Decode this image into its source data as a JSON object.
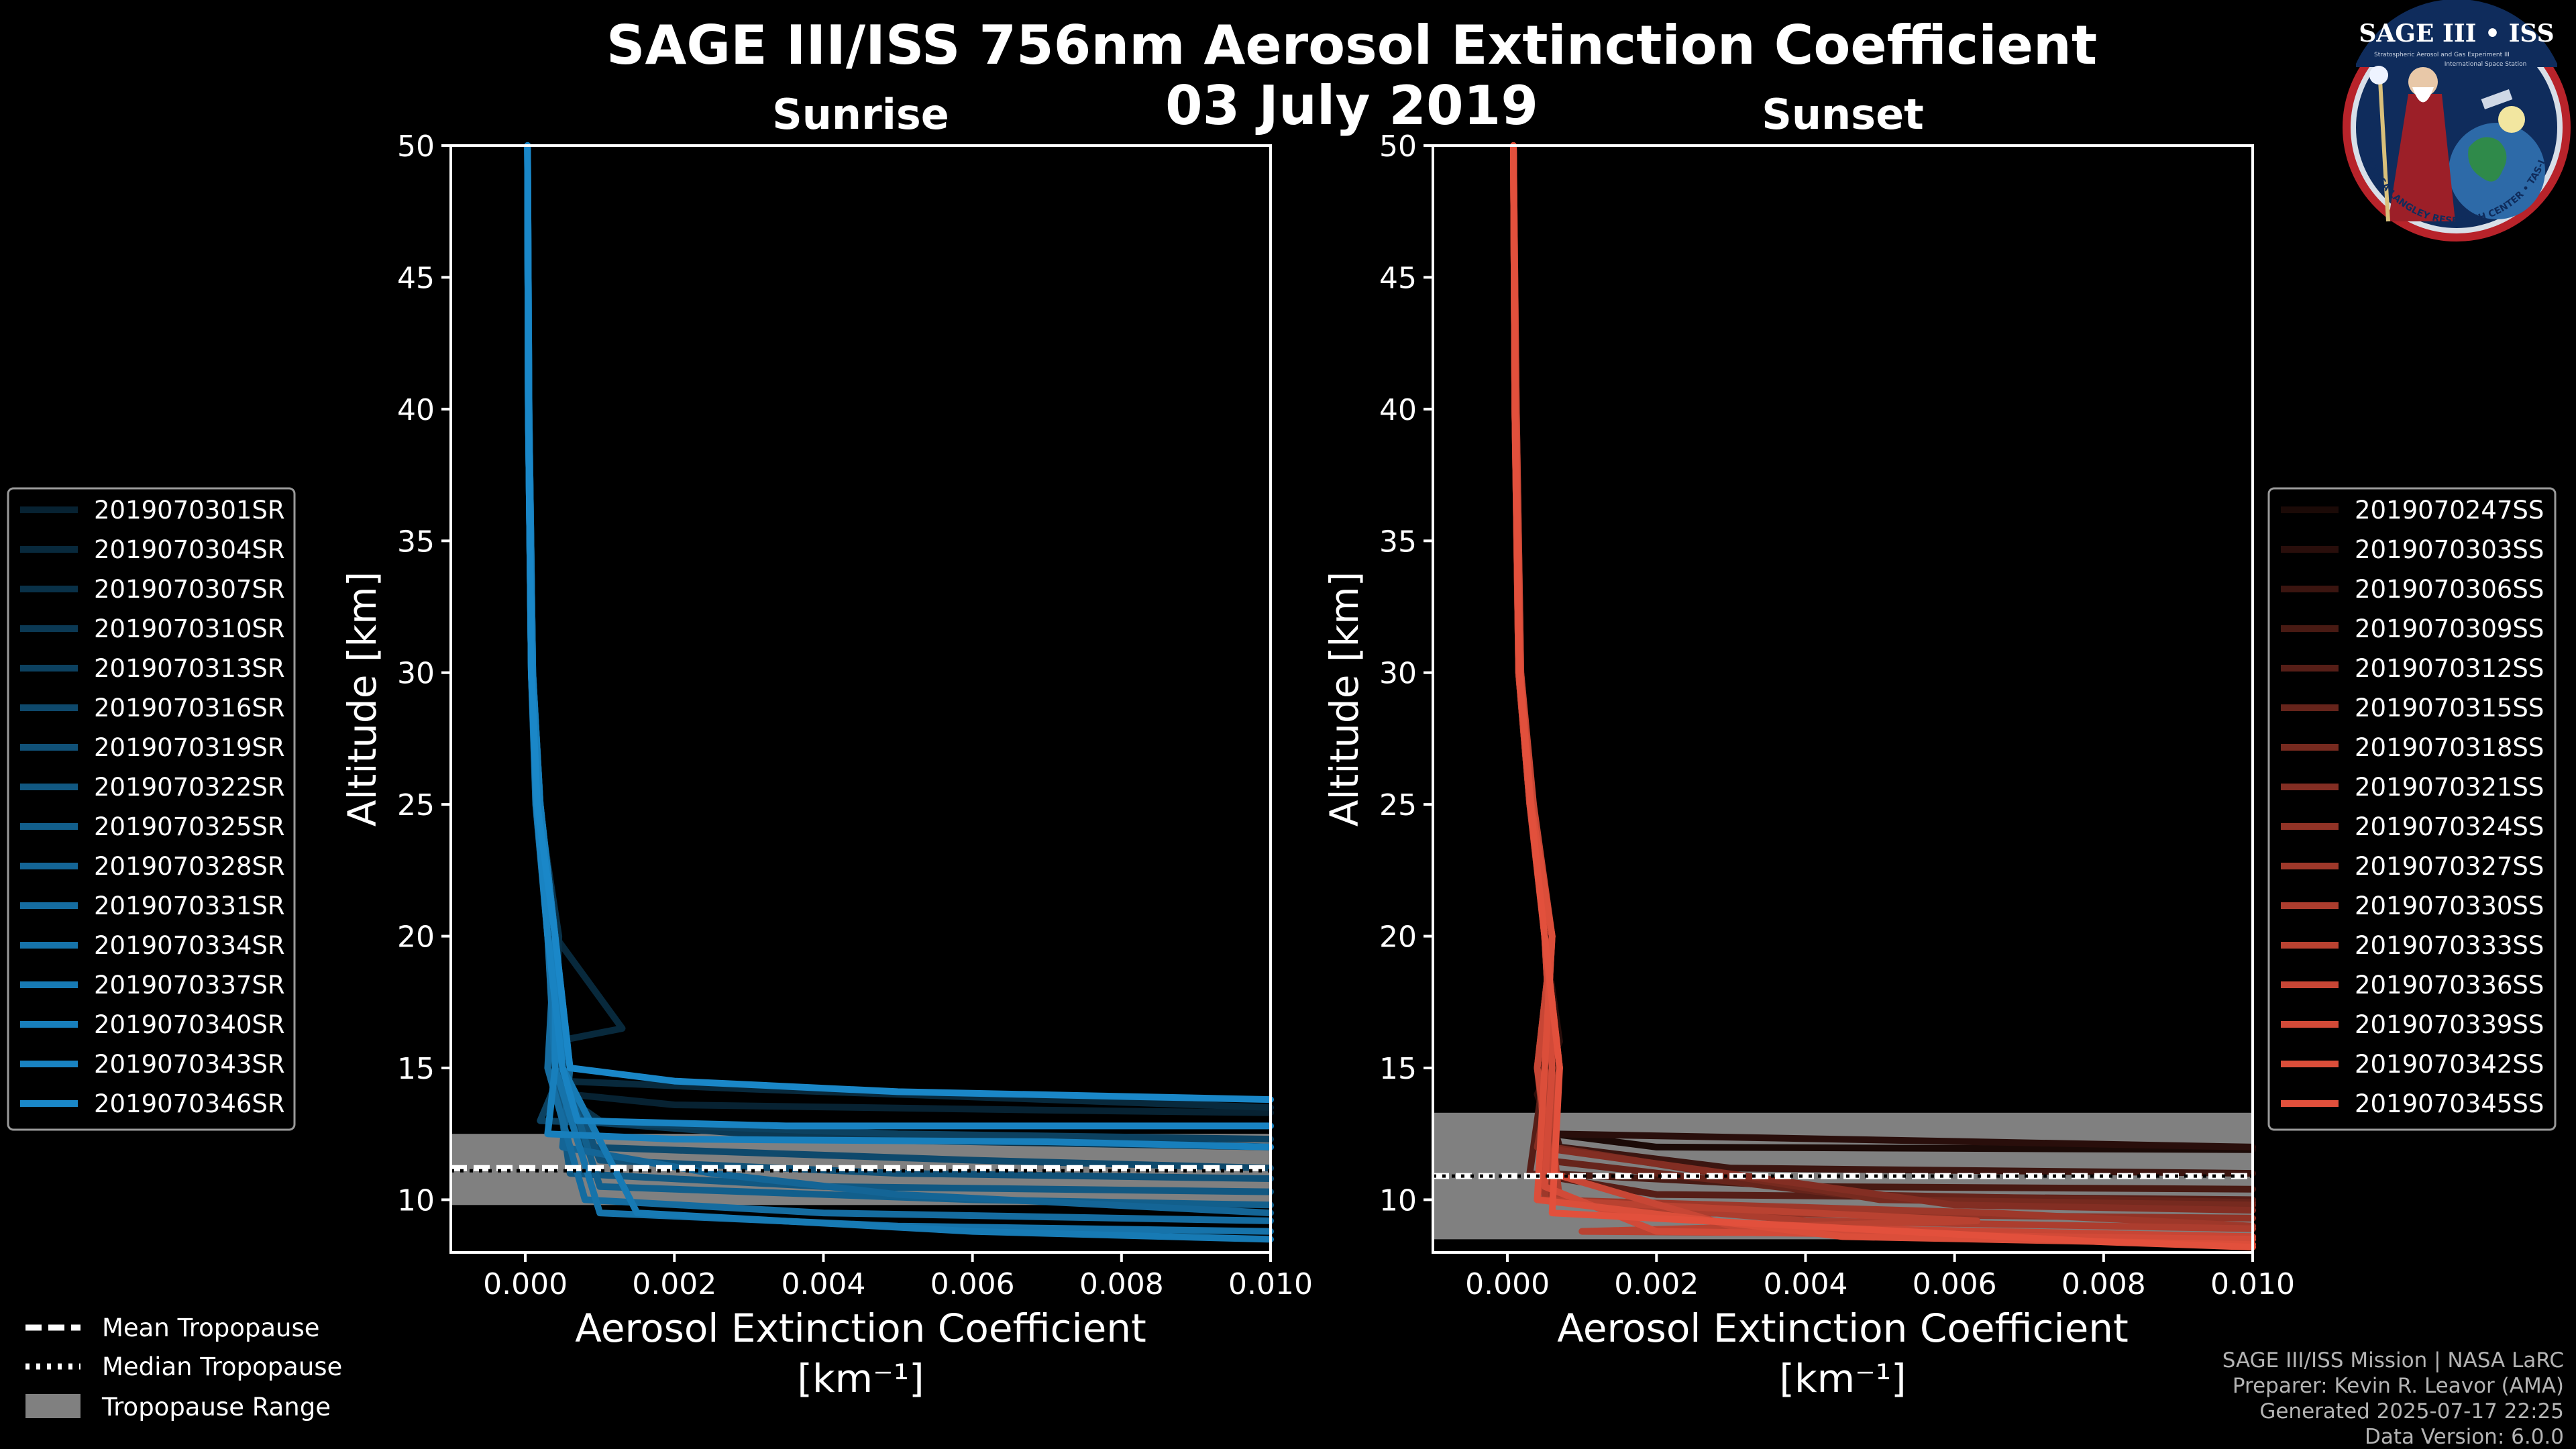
{
  "header": {
    "title_line1": "SAGE III/ISS 756nm Aerosol Extinction Coefficient",
    "title_line2": "03 July 2019"
  },
  "logo": {
    "text": "SAGE III • ISS",
    "ring_text": "BALL • NASA LANGLEY RESEARCH CENTER • TAS-I • ESA",
    "subtitle": "Stratospheric Aerosol and Gas Experiment III",
    "subtitle2": "International Space Station"
  },
  "footer": {
    "line1": "SAGE III/ISS Mission | NASA LaRC",
    "line2": "Preparer: Kevin R. Leavor (AMA)",
    "line3": "Generated 2025-07-17 22:25",
    "line4": "Data Version: 6.0.0"
  },
  "tropopause_legend": {
    "mean": "Mean Tropopause",
    "median": "Median Tropopause",
    "range": "Tropopause Range"
  },
  "colors": {
    "sunrise": "#1a87c8",
    "sunset": "#e2503c",
    "tropo_band": "#808080"
  },
  "chart_data": [
    {
      "type": "line",
      "title": "Sunrise",
      "xlabel": "Aerosol Extinction Coefficient",
      "xlabel_unit": "[km⁻¹]",
      "ylabel": "Altitude [km]",
      "xlim": [
        -0.001,
        0.01
      ],
      "ylim": [
        8,
        50
      ],
      "x_ticks": [
        0.0,
        0.002,
        0.004,
        0.006,
        0.008,
        0.01
      ],
      "x_tick_labels": [
        "0.000",
        "0.002",
        "0.004",
        "0.006",
        "0.008",
        "0.010"
      ],
      "y_ticks": [
        10,
        15,
        20,
        25,
        30,
        35,
        40,
        45,
        50
      ],
      "tropopause": {
        "mean": 11.2,
        "median": 11.1,
        "range": [
          9.8,
          12.5
        ]
      },
      "legend": [
        "2019070301SR",
        "2019070304SR",
        "2019070307SR",
        "2019070310SR",
        "2019070313SR",
        "2019070316SR",
        "2019070319SR",
        "2019070322SR",
        "2019070325SR",
        "2019070328SR",
        "2019070331SR",
        "2019070334SR",
        "2019070337SR",
        "2019070340SR",
        "2019070343SR",
        "2019070346SR"
      ],
      "profiles": [
        {
          "x": [
            3e-05,
            4e-05,
            8e-05,
            0.00015,
            0.00035,
            0.0005,
            0.0004,
            0.0006,
            0.002,
            0.007,
            0.01
          ],
          "y": [
            50,
            40,
            30,
            25,
            20,
            16,
            15,
            14,
            13.6,
            13.4,
            13.3
          ]
        },
        {
          "x": [
            3e-05,
            4e-05,
            8e-05,
            0.00016,
            0.0004,
            0.0013,
            0.0004,
            0.0005,
            0.003,
            0.006,
            0.01
          ],
          "y": [
            50,
            40,
            30,
            25,
            20,
            16.5,
            16,
            14.5,
            14.2,
            13.9,
            13.5
          ]
        },
        {
          "x": [
            3e-05,
            5e-05,
            9e-05,
            0.00018,
            0.00045,
            0.0004,
            0.0005,
            0.001,
            0.004,
            0.01
          ],
          "y": [
            50,
            40,
            30,
            25,
            20,
            15,
            14,
            13,
            12.3,
            12.0
          ]
        },
        {
          "x": [
            3e-05,
            4e-05,
            8e-05,
            0.00014,
            0.0003,
            0.0004,
            0.0006,
            0.003,
            0.008,
            0.01
          ],
          "y": [
            50,
            40,
            30,
            25,
            20,
            15,
            13,
            12.5,
            12.2,
            12.0
          ]
        },
        {
          "x": [
            3e-05,
            5e-05,
            0.0001,
            0.0002,
            0.0004,
            0.0005,
            0.0002,
            0.005,
            0.01
          ],
          "y": [
            50,
            40,
            30,
            25,
            20,
            15,
            13,
            12.5,
            12.3
          ]
        },
        {
          "x": [
            3e-05,
            4e-05,
            9e-05,
            0.00017,
            0.00035,
            0.0004,
            0.0008,
            0.006,
            0.01
          ],
          "y": [
            50,
            40,
            30,
            25,
            20,
            15,
            12,
            11.5,
            11.2
          ]
        },
        {
          "x": [
            3e-05,
            4e-05,
            8e-05,
            0.00015,
            0.0004,
            0.0005,
            0.001,
            0.005,
            0.01
          ],
          "y": [
            50,
            40,
            30,
            25,
            20,
            15,
            11.5,
            11.0,
            10.8
          ]
        },
        {
          "x": [
            3e-05,
            5e-05,
            0.0001,
            0.0002,
            0.0004,
            0.0004,
            0.0006,
            0.004,
            0.01
          ],
          "y": [
            50,
            40,
            30,
            25,
            20,
            15,
            11,
            10.5,
            10.3
          ]
        },
        {
          "x": [
            3e-05,
            4e-05,
            8e-05,
            0.00015,
            0.0003,
            0.0005,
            0.001,
            0.006,
            0.01
          ],
          "y": [
            50,
            40,
            30,
            25,
            20,
            15,
            10.5,
            10.0,
            9.8
          ]
        },
        {
          "x": [
            3e-05,
            4e-05,
            9e-05,
            0.00016,
            0.0004,
            0.0006,
            0.0005,
            0.0025,
            0.005,
            0.01
          ],
          "y": [
            50,
            40,
            30,
            25,
            20,
            15,
            12,
            11,
            10.2,
            9.5
          ]
        },
        {
          "x": [
            3e-05,
            5e-05,
            0.0001,
            0.0002,
            0.0004,
            0.0003,
            0.0008,
            0.004,
            0.01
          ],
          "y": [
            50,
            40,
            30,
            25,
            20,
            15,
            10,
            9.5,
            9.2
          ]
        },
        {
          "x": [
            3e-05,
            4e-05,
            8e-05,
            0.00014,
            0.0003,
            0.0004,
            0.001,
            0.005,
            0.01
          ],
          "y": [
            50,
            40,
            30,
            25,
            20,
            15,
            9.5,
            9.0,
            8.8
          ]
        },
        {
          "x": [
            3e-05,
            4e-05,
            9e-05,
            0.00017,
            0.0004,
            0.0005,
            0.0015,
            0.006,
            0.01
          ],
          "y": [
            50,
            40,
            30,
            25,
            20,
            15,
            9.5,
            8.8,
            8.5
          ]
        },
        {
          "x": [
            3e-05,
            5e-05,
            0.0001,
            0.0002,
            0.0004,
            0.0004,
            0.0003,
            0.002,
            0.007,
            0.01
          ],
          "y": [
            50,
            40,
            30,
            25,
            20,
            15,
            12.5,
            12.3,
            12.2,
            12.0
          ]
        },
        {
          "x": [
            3e-05,
            4e-05,
            8e-05,
            0.00015,
            0.0003,
            0.0005,
            0.0007,
            0.0035,
            0.01
          ],
          "y": [
            50,
            40,
            30,
            25,
            20,
            15,
            13,
            12.8,
            12.8
          ]
        },
        {
          "x": [
            3e-05,
            4e-05,
            8e-05,
            0.00016,
            0.0004,
            0.0006,
            0.002,
            0.005,
            0.01
          ],
          "y": [
            50,
            40,
            30,
            25,
            20,
            15,
            14.5,
            14.1,
            13.8
          ]
        }
      ]
    },
    {
      "type": "line",
      "title": "Sunset",
      "xlabel": "Aerosol Extinction Coefficient",
      "xlabel_unit": "[km⁻¹]",
      "ylabel": "Altitude [km]",
      "xlim": [
        -0.001,
        0.01
      ],
      "ylim": [
        8,
        50
      ],
      "x_ticks": [
        0.0,
        0.002,
        0.004,
        0.006,
        0.008,
        0.01
      ],
      "x_tick_labels": [
        "0.000",
        "0.002",
        "0.004",
        "0.006",
        "0.008",
        "0.010"
      ],
      "y_ticks": [
        10,
        15,
        20,
        25,
        30,
        35,
        40,
        45,
        50
      ],
      "tropopause": {
        "mean": 10.9,
        "median": 10.9,
        "range": [
          8.5,
          13.3
        ]
      },
      "legend": [
        "2019070247SS",
        "2019070303SS",
        "2019070306SS",
        "2019070309SS",
        "2019070312SS",
        "2019070315SS",
        "2019070318SS",
        "2019070321SS",
        "2019070324SS",
        "2019070327SS",
        "2019070330SS",
        "2019070333SS",
        "2019070336SS",
        "2019070339SS",
        "2019070342SS",
        "2019070345SS"
      ],
      "profiles": [
        {
          "x": [
            8e-05,
            0.0001,
            0.00015,
            0.0003,
            0.0006,
            0.0005,
            0.0006,
            0.002,
            0.01
          ],
          "y": [
            50,
            40,
            30,
            25,
            20,
            16,
            12.5,
            12.0,
            11.9
          ]
        },
        {
          "x": [
            8e-05,
            0.0001,
            0.00016,
            0.00032,
            0.0005,
            0.0007,
            0.0004,
            0.0006,
            0.01
          ],
          "y": [
            50,
            40,
            30,
            25,
            20,
            16,
            14,
            12.5,
            12.0
          ]
        },
        {
          "x": [
            8e-05,
            0.00012,
            0.00018,
            0.00035,
            0.0006,
            0.0004,
            0.0007,
            0.003,
            0.01
          ],
          "y": [
            50,
            40,
            30,
            25,
            20,
            15,
            12,
            11.2,
            11.0
          ]
        },
        {
          "x": [
            8e-05,
            0.0001,
            0.00015,
            0.0003,
            0.0005,
            0.0006,
            0.0005,
            0.004,
            0.01
          ],
          "y": [
            50,
            40,
            30,
            25,
            20,
            15,
            11,
            10.5,
            10.4
          ]
        },
        {
          "x": [
            8e-05,
            0.00011,
            0.00017,
            0.00033,
            0.0006,
            0.0005,
            0.0003,
            0.002,
            0.01
          ],
          "y": [
            50,
            40,
            30,
            25,
            20,
            15,
            11,
            10.2,
            10.0
          ]
        },
        {
          "x": [
            8e-05,
            0.0001,
            0.00015,
            0.0003,
            0.0005,
            0.0007,
            0.0005,
            0.0045,
            0.01
          ],
          "y": [
            50,
            40,
            30,
            25,
            20,
            15,
            11.5,
            10.2,
            9.9
          ]
        },
        {
          "x": [
            8e-05,
            0.0001,
            0.00016,
            0.00031,
            0.0006,
            0.0004,
            0.0006,
            0.005,
            0.01
          ],
          "y": [
            50,
            40,
            30,
            25,
            20,
            15,
            12,
            10.0,
            9.8
          ]
        },
        {
          "x": [
            8e-05,
            0.00012,
            0.00018,
            0.00034,
            0.0005,
            0.0006,
            0.0004,
            0.006,
            0.01
          ],
          "y": [
            50,
            40,
            30,
            25,
            20,
            15,
            12,
            9.8,
            9.6
          ]
        },
        {
          "x": [
            8e-05,
            0.0001,
            0.00015,
            0.0003,
            0.0006,
            0.0004,
            0.0006,
            0.0025,
            0.01
          ],
          "y": [
            50,
            40,
            30,
            25,
            20,
            15,
            10,
            9.5,
            9.3
          ]
        },
        {
          "x": [
            8e-05,
            0.00011,
            0.00017,
            0.00032,
            0.0005,
            0.0006,
            0.0005,
            0.0065,
            0.01
          ],
          "y": [
            50,
            40,
            30,
            25,
            20,
            15,
            10,
            9.5,
            9.0
          ]
        },
        {
          "x": [
            8e-05,
            0.0001,
            0.00015,
            0.0003,
            0.0006,
            0.0005,
            0.0007,
            0.004,
            0.01
          ],
          "y": [
            50,
            40,
            30,
            25,
            20,
            15,
            10,
            9.2,
            8.9
          ]
        },
        {
          "x": [
            8e-05,
            0.0001,
            0.00016,
            0.00033,
            0.0005,
            0.0007,
            0.0004,
            0.0063,
            0.001,
            0.01
          ],
          "y": [
            50,
            40,
            30,
            25,
            20,
            15,
            10,
            9.2,
            8.8,
            8.6
          ]
        },
        {
          "x": [
            8e-05,
            0.00012,
            0.00018,
            0.00035,
            0.0006,
            0.0004,
            0.0006,
            0.003,
            0.01
          ],
          "y": [
            50,
            40,
            30,
            25,
            20,
            15,
            11,
            9.0,
            8.6
          ]
        },
        {
          "x": [
            8e-05,
            0.0001,
            0.00015,
            0.0003,
            0.0005,
            0.0006,
            0.0005,
            0.002,
            0.01
          ],
          "y": [
            50,
            40,
            30,
            25,
            20,
            15,
            10.5,
            8.8,
            8.5
          ]
        },
        {
          "x": [
            8e-05,
            0.00011,
            0.00017,
            0.00032,
            0.0006,
            0.0005,
            0.0004,
            0.0045,
            0.01
          ],
          "y": [
            50,
            40,
            30,
            25,
            20,
            15,
            10,
            8.6,
            8.3
          ]
        },
        {
          "x": [
            8e-05,
            0.0001,
            0.00016,
            0.00031,
            0.0005,
            0.0007,
            0.0006,
            0.008,
            0.01
          ],
          "y": [
            50,
            40,
            30,
            25,
            20,
            15,
            9.5,
            8.4,
            8.2
          ]
        }
      ]
    }
  ]
}
